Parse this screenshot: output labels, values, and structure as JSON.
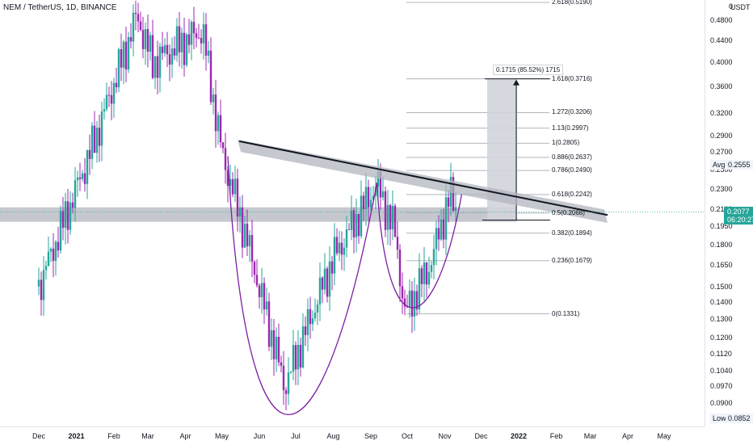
{
  "header": {
    "symbol_title": "NEM / TetherUS, 1D, BINANCE"
  },
  "price_axis": {
    "currency": "USDT",
    "ticks": [
      "0.4800",
      "0.4400",
      "0.4000",
      "0.3600",
      "0.3200",
      "0.2900",
      "0.2700",
      "0.2500",
      "0.2300",
      "0.2100",
      "0.1950",
      "0.1800",
      "0.1650",
      "0.1500",
      "0.1400",
      "0.1300",
      "0.1200",
      "0.1120",
      "0.1040",
      "0.0970",
      "0.0900"
    ],
    "top_partial": "0",
    "current_price": "0.2077",
    "countdown": "06:20:27",
    "avg_label": "Avg",
    "avg_value": "0.2555",
    "low_label": "Low",
    "low_value": "0.0852"
  },
  "time_axis": {
    "ticks": [
      {
        "label": "Dec",
        "bold": false
      },
      {
        "label": "2021",
        "bold": true
      },
      {
        "label": "Feb",
        "bold": false
      },
      {
        "label": "Mar",
        "bold": false
      },
      {
        "label": "Apr",
        "bold": false
      },
      {
        "label": "May",
        "bold": false
      },
      {
        "label": "Jun",
        "bold": false
      },
      {
        "label": "Jul",
        "bold": false
      },
      {
        "label": "Aug",
        "bold": false
      },
      {
        "label": "Sep",
        "bold": false
      },
      {
        "label": "Oct",
        "bold": false
      },
      {
        "label": "Nov",
        "bold": false
      },
      {
        "label": "Dec",
        "bold": false
      },
      {
        "label": "2022",
        "bold": true
      },
      {
        "label": "Feb",
        "bold": false
      },
      {
        "label": "Mar",
        "bold": false
      },
      {
        "label": "Apr",
        "bold": false
      },
      {
        "label": "May",
        "bold": false
      }
    ]
  },
  "fibonacci": {
    "levels": [
      {
        "label": "2.618(0.5190)",
        "value": 0.519
      },
      {
        "label": "1.618(0.3716)",
        "value": 0.3716
      },
      {
        "label": "1.272(0.3206)",
        "value": 0.3206
      },
      {
        "label": "1.13(0.2997)",
        "value": 0.2997
      },
      {
        "label": "1(0.2805)",
        "value": 0.2805
      },
      {
        "label": "0.886(0.2637)",
        "value": 0.2637
      },
      {
        "label": "0.786(0.2490)",
        "value": 0.249
      },
      {
        "label": "0.618(0.2242)",
        "value": 0.2242
      },
      {
        "label": "0.5(0.2068)",
        "value": 0.2068
      },
      {
        "label": "0.382(0.1894)",
        "value": 0.1894
      },
      {
        "label": "0.236(0.1679)",
        "value": 0.1679
      },
      {
        "label": "0(0.1331)",
        "value": 0.1331
      }
    ]
  },
  "measure": {
    "label": "0.1715 (85.52%) 1715"
  },
  "colors": {
    "up": "#26a69a",
    "down": "#9c27b0",
    "pattern": "#7b1fa2",
    "trendline": "#131722",
    "band": "#b2b5be",
    "fib_line": "#b2b5be",
    "box": "#d1d4dc"
  },
  "chart_data": {
    "type": "candlestick",
    "title": "NEM / TetherUS, 1D, BINANCE",
    "y_scale": "log",
    "ylim": [
      0.083,
      0.52
    ],
    "current_price": 0.2077,
    "key_points": [
      {
        "date": "2020-12-01",
        "close": 0.15
      },
      {
        "date": "2021-01-15",
        "close": 0.28
      },
      {
        "date": "2021-02-20",
        "close": 0.49
      },
      {
        "date": "2021-03-05",
        "close": 0.4
      },
      {
        "date": "2021-04-15",
        "close": 0.46
      },
      {
        "date": "2021-05-01",
        "close": 0.27
      },
      {
        "date": "2021-05-20",
        "close": 0.19
      },
      {
        "date": "2021-06-22",
        "close": 0.097
      },
      {
        "date": "2021-08-01",
        "close": 0.17
      },
      {
        "date": "2021-09-06",
        "close": 0.235
      },
      {
        "date": "2021-09-21",
        "close": 0.19
      },
      {
        "date": "2021-09-29",
        "close": 0.1331
      },
      {
        "date": "2021-10-20",
        "close": 0.165
      },
      {
        "date": "2021-11-05",
        "close": 0.2242
      },
      {
        "date": "2021-11-11",
        "close": 0.2077
      }
    ]
  }
}
